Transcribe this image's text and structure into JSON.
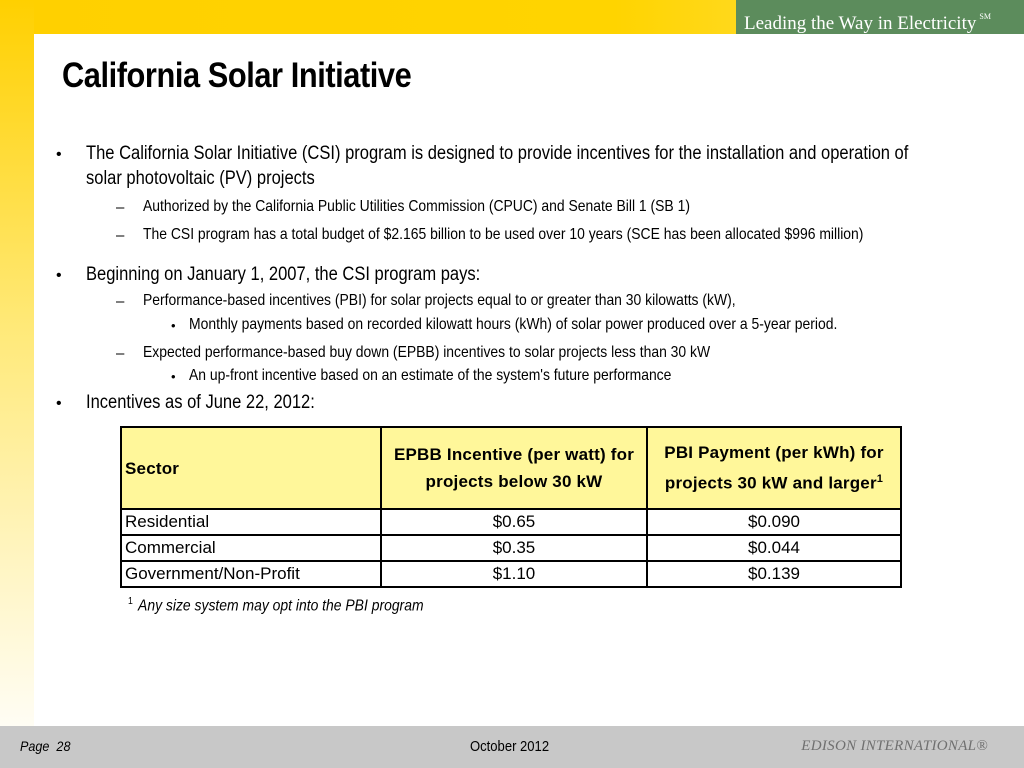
{
  "header": {
    "tagline": "Leading the Way in Electricity",
    "tagline_mark": "SM"
  },
  "slide": {
    "title": "California Solar Initiative",
    "bullets": [
      {
        "text_line1": "The California Solar Initiative (CSI) program is designed to provide incentives for the installation and operation of",
        "text_line2": "solar photovoltaic (PV) projects",
        "sub": [
          "Authorized by the California Public Utilities Commission (CPUC) and Senate Bill 1 (SB 1)",
          "The CSI program has a total budget of $2.165 billion to be used over 10 years (SCE has been allocated $996 million)"
        ]
      },
      {
        "text": "Beginning on January 1, 2007, the CSI program pays:",
        "sub": [
          {
            "text": "Performance-based incentives (PBI) for solar projects equal to or greater than 30 kilowatts (kW),",
            "detail": "Monthly payments based on recorded kilowatt hours (kWh) of solar power produced over a 5-year period."
          },
          {
            "text": "Expected performance-based buy down (EPBB) incentives to solar projects less than 30 kW",
            "detail": "An up-front incentive based on an estimate of the system's future performance"
          }
        ]
      },
      {
        "text": "Incentives as of June 22, 2012:"
      }
    ],
    "bullet_glyph": "•",
    "dash_glyph": "–"
  },
  "table": {
    "headers": {
      "sector": "Sector",
      "epbb": "EPBB Incentive (per watt) for projects below 30 kW",
      "pbi": "PBI Payment (per kWh) for projects 30 kW and larger",
      "pbi_note": "1"
    },
    "rows": [
      {
        "sector": "Residential",
        "epbb": "$0.65",
        "pbi": "$0.090"
      },
      {
        "sector": "Commercial",
        "epbb": "$0.35",
        "pbi": "$0.044"
      },
      {
        "sector": "Government/Non-Profit",
        "epbb": "$1.10",
        "pbi": "$0.139"
      }
    ]
  },
  "footnote": {
    "mark": "1",
    "text": "Any size system may opt into the PBI program"
  },
  "footer": {
    "page_label": "Page",
    "page_number": "28",
    "date": "October 2012",
    "brand": "EDISON INTERNATIONAL®"
  },
  "colors": {
    "banner_yellow": "#ffd000",
    "tagline_green": "#5c8c5c",
    "table_header": "#fff79a",
    "footer_gray": "#c8c8c8"
  }
}
